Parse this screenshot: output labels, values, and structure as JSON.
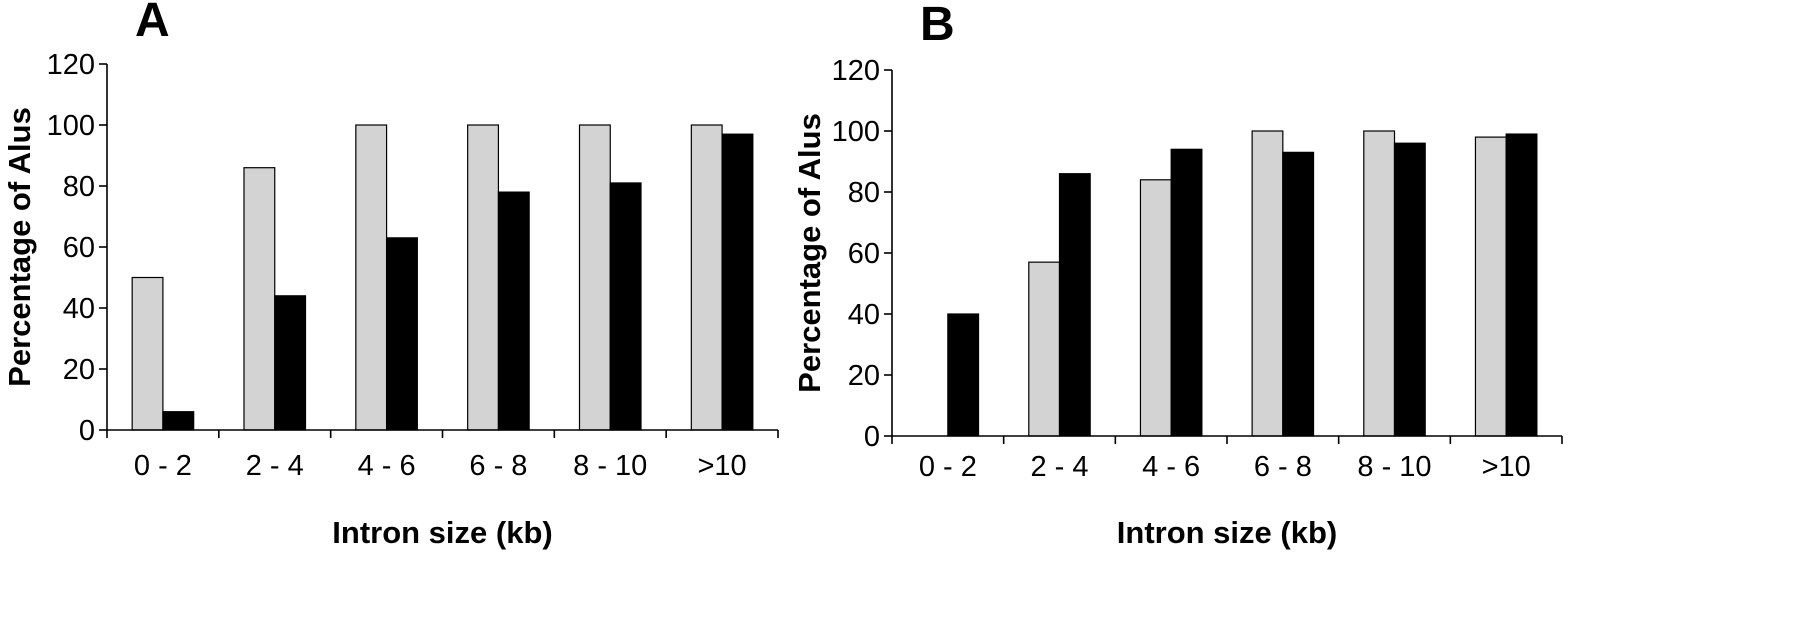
{
  "colors": {
    "series1": "#d3d3d3",
    "series2": "#000000"
  },
  "chart_data": [
    {
      "type": "bar",
      "panel_label": "A",
      "categories": [
        "0 - 2",
        "2 - 4",
        "4 - 6",
        "6 - 8",
        "8 - 10",
        ">10"
      ],
      "series": [
        {
          "values": [
            50,
            86,
            100,
            100,
            100,
            100
          ]
        },
        {
          "values": [
            6,
            44,
            63,
            78,
            81,
            97
          ]
        }
      ],
      "xlabel": "Intron size (kb)",
      "ylabel": "Percentage of Alus",
      "ylim": [
        0,
        120
      ],
      "yticks": [
        0,
        20,
        40,
        60,
        80,
        100,
        120
      ],
      "grid": false
    },
    {
      "type": "bar",
      "panel_label": "B",
      "categories": [
        "0 - 2",
        "2 - 4",
        "4 - 6",
        "6 - 8",
        "8 - 10",
        ">10"
      ],
      "series": [
        {
          "values": [
            0,
            57,
            84,
            100,
            100,
            98
          ]
        },
        {
          "values": [
            40,
            86,
            94,
            93,
            96,
            99
          ]
        }
      ],
      "xlabel": "Intron size (kb)",
      "ylabel": "Percentage of Alus",
      "ylim": [
        0,
        120
      ],
      "yticks": [
        0,
        20,
        40,
        60,
        80,
        100,
        120
      ],
      "grid": false
    }
  ]
}
